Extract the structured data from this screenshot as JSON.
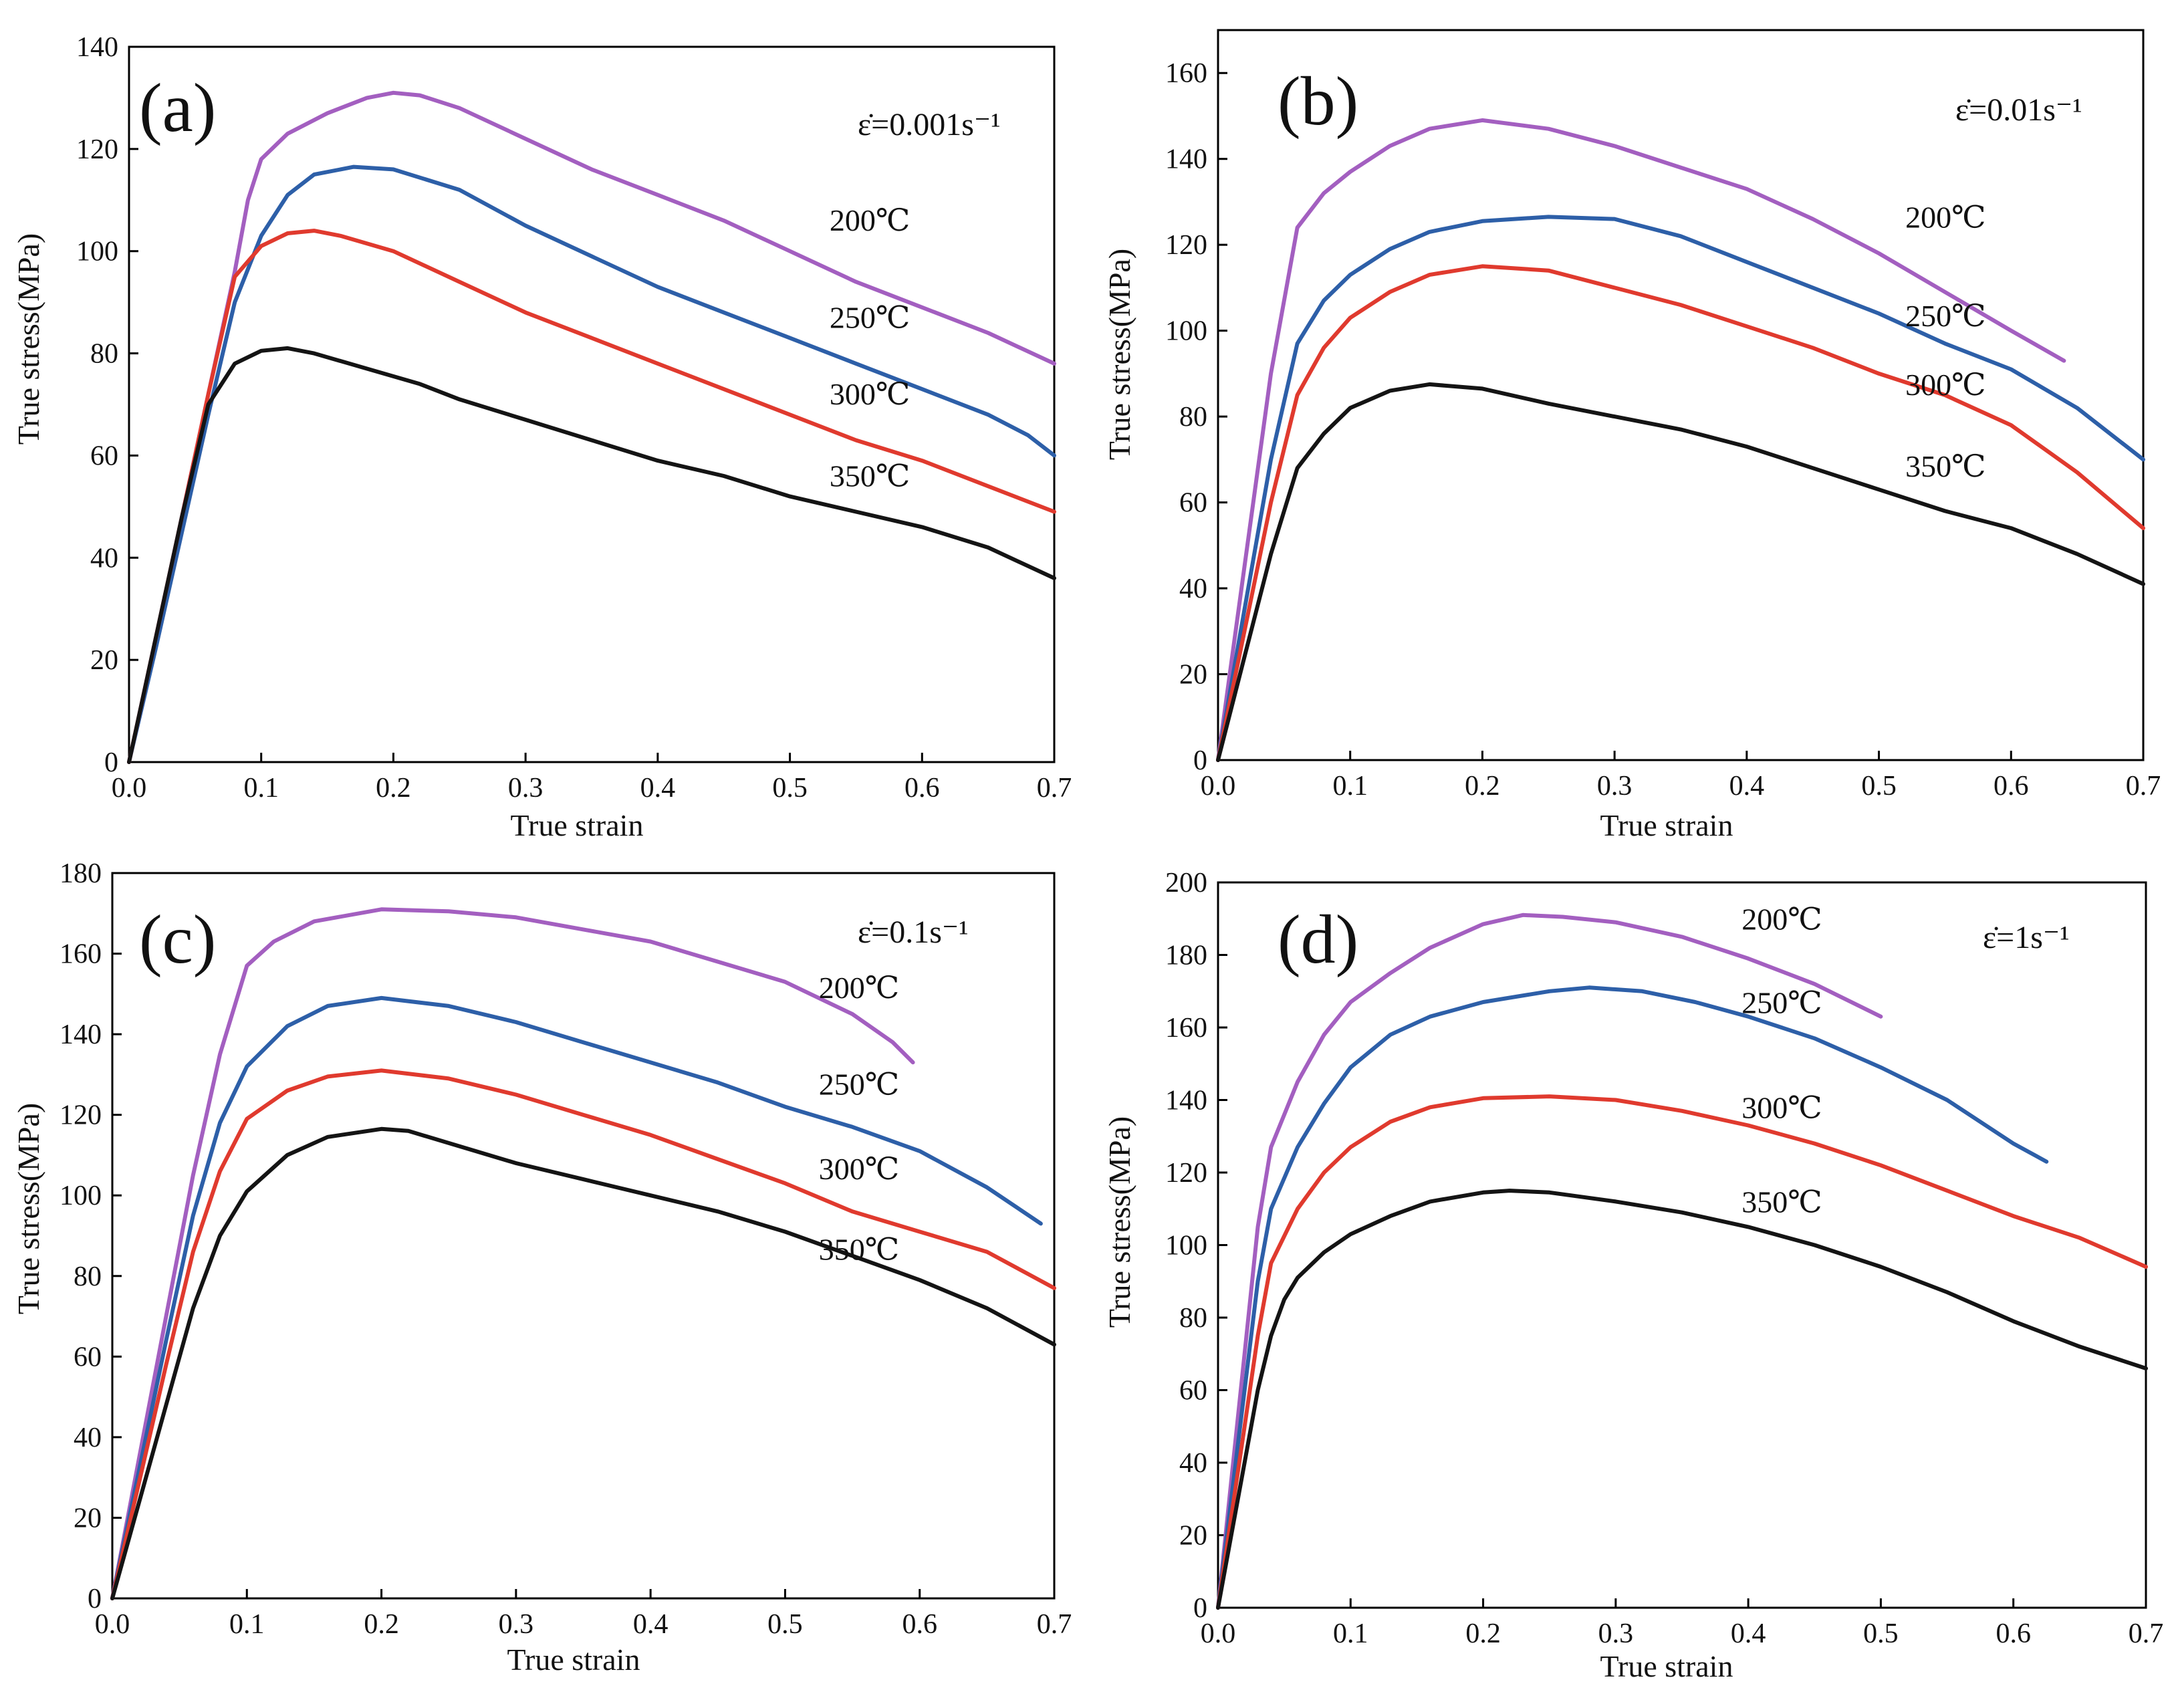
{
  "chart_data": [
    {
      "type": "line",
      "panel_label": "(a)",
      "strain_rate_label": "ε̇=0.001s⁻¹",
      "xlabel": "True strain",
      "ylabel": "True stress(MPa)",
      "xlim": [
        0,
        0.7
      ],
      "ylim": [
        0,
        140
      ],
      "xticks": [
        0.0,
        0.1,
        0.2,
        0.3,
        0.4,
        0.5,
        0.6,
        0.7
      ],
      "xtick_labels": [
        "0.0",
        "0.1",
        "0.2",
        "0.3",
        "0.4",
        "0.5",
        "0.6",
        "0.7"
      ],
      "yticks": [
        0,
        20,
        40,
        60,
        80,
        100,
        120,
        140
      ],
      "ytick_labels": [
        "0",
        "20",
        "40",
        "60",
        "80",
        "100",
        "120",
        "140"
      ],
      "series": [
        {
          "name": "200℃",
          "color": "#a35fc0",
          "label_at": [
            0.53,
            104
          ],
          "x": [
            0,
            0.02,
            0.04,
            0.06,
            0.08,
            0.09,
            0.1,
            0.12,
            0.15,
            0.18,
            0.2,
            0.22,
            0.25,
            0.3,
            0.35,
            0.4,
            0.45,
            0.5,
            0.55,
            0.6,
            0.65,
            0.7
          ],
          "y": [
            0,
            24,
            48,
            72,
            96,
            110,
            118,
            123,
            127,
            130,
            131,
            130.5,
            128,
            122,
            116,
            111,
            106,
            100,
            94,
            89,
            84,
            78
          ]
        },
        {
          "name": "250℃",
          "color": "#2d5fa8",
          "label_at": [
            0.53,
            85
          ],
          "x": [
            0,
            0.02,
            0.04,
            0.06,
            0.08,
            0.1,
            0.12,
            0.14,
            0.17,
            0.2,
            0.25,
            0.3,
            0.35,
            0.4,
            0.45,
            0.5,
            0.55,
            0.6,
            0.65,
            0.68,
            0.7
          ],
          "y": [
            0,
            22,
            45,
            68,
            90,
            103,
            111,
            115,
            116.5,
            116,
            112,
            105,
            99,
            93,
            88,
            83,
            78,
            73,
            68,
            64,
            60
          ]
        },
        {
          "name": "300℃",
          "color": "#e03a2e",
          "label_at": [
            0.53,
            70
          ],
          "x": [
            0,
            0.02,
            0.04,
            0.06,
            0.08,
            0.1,
            0.12,
            0.14,
            0.16,
            0.2,
            0.25,
            0.3,
            0.35,
            0.4,
            0.45,
            0.5,
            0.55,
            0.6,
            0.65,
            0.7
          ],
          "y": [
            0,
            24,
            48,
            72,
            95,
            101,
            103.5,
            104,
            103,
            100,
            94,
            88,
            83,
            78,
            73,
            68,
            63,
            59,
            54,
            49
          ]
        },
        {
          "name": "350℃",
          "color": "#141414",
          "label_at": [
            0.53,
            54
          ],
          "x": [
            0,
            0.02,
            0.04,
            0.06,
            0.08,
            0.1,
            0.12,
            0.14,
            0.18,
            0.22,
            0.25,
            0.3,
            0.35,
            0.4,
            0.45,
            0.5,
            0.55,
            0.6,
            0.65,
            0.7
          ],
          "y": [
            0,
            24,
            48,
            70,
            78,
            80.5,
            81,
            80,
            77,
            74,
            71,
            67,
            63,
            59,
            56,
            52,
            49,
            46,
            42,
            36
          ]
        }
      ]
    },
    {
      "type": "line",
      "panel_label": "(b)",
      "strain_rate_label": "ε̇=0.01s⁻¹",
      "xlabel": "True strain",
      "ylabel": "True stress(MPa)",
      "xlim": [
        0,
        0.7
      ],
      "ylim": [
        0,
        170
      ],
      "xticks": [
        0.0,
        0.1,
        0.2,
        0.3,
        0.4,
        0.5,
        0.6,
        0.7
      ],
      "xtick_labels": [
        "0.0",
        "0.1",
        "0.2",
        "0.3",
        "0.4",
        "0.5",
        "0.6",
        "0.7"
      ],
      "yticks": [
        0,
        20,
        40,
        60,
        80,
        100,
        120,
        140,
        160
      ],
      "ytick_labels": [
        "0",
        "20",
        "40",
        "60",
        "80",
        "100",
        "120",
        "140",
        "160"
      ],
      "series": [
        {
          "name": "200℃",
          "color": "#a35fc0",
          "label_at": [
            0.52,
            124
          ],
          "x": [
            0,
            0.02,
            0.04,
            0.06,
            0.08,
            0.1,
            0.13,
            0.16,
            0.2,
            0.25,
            0.3,
            0.35,
            0.4,
            0.45,
            0.5,
            0.55,
            0.6,
            0.64
          ],
          "y": [
            0,
            45,
            90,
            124,
            132,
            137,
            143,
            147,
            149,
            147,
            143,
            138,
            133,
            126,
            118,
            109,
            100,
            93
          ]
        },
        {
          "name": "250℃",
          "color": "#2d5fa8",
          "label_at": [
            0.52,
            101
          ],
          "x": [
            0,
            0.02,
            0.04,
            0.06,
            0.08,
            0.1,
            0.13,
            0.16,
            0.2,
            0.25,
            0.3,
            0.35,
            0.4,
            0.45,
            0.5,
            0.55,
            0.6,
            0.65,
            0.7
          ],
          "y": [
            0,
            35,
            70,
            97,
            107,
            113,
            119,
            123,
            125.5,
            126.5,
            126,
            122,
            116,
            110,
            104,
            97,
            91,
            82,
            70
          ]
        },
        {
          "name": "300℃",
          "color": "#e03a2e",
          "label_at": [
            0.52,
            85
          ],
          "x": [
            0,
            0.02,
            0.04,
            0.06,
            0.08,
            0.1,
            0.13,
            0.16,
            0.2,
            0.25,
            0.3,
            0.35,
            0.4,
            0.45,
            0.5,
            0.55,
            0.6,
            0.65,
            0.7
          ],
          "y": [
            0,
            30,
            60,
            85,
            96,
            103,
            109,
            113,
            115,
            114,
            110,
            106,
            101,
            96,
            90,
            85,
            78,
            67,
            54
          ]
        },
        {
          "name": "350℃",
          "color": "#141414",
          "label_at": [
            0.52,
            66
          ],
          "x": [
            0,
            0.02,
            0.04,
            0.06,
            0.08,
            0.1,
            0.13,
            0.16,
            0.2,
            0.25,
            0.3,
            0.35,
            0.4,
            0.45,
            0.5,
            0.55,
            0.6,
            0.65,
            0.7
          ],
          "y": [
            0,
            24,
            48,
            68,
            76,
            82,
            86,
            87.5,
            86.5,
            83,
            80,
            77,
            73,
            68,
            63,
            58,
            54,
            48,
            41
          ]
        }
      ]
    },
    {
      "type": "line",
      "panel_label": "(c)",
      "strain_rate_label": "ε̇=0.1s⁻¹",
      "xlabel": "True strain",
      "ylabel": "True stress(MPa)",
      "xlim": [
        0,
        0.7
      ],
      "ylim": [
        0,
        180
      ],
      "xticks": [
        0.0,
        0.1,
        0.2,
        0.3,
        0.4,
        0.5,
        0.6,
        0.7
      ],
      "xtick_labels": [
        "0.0",
        "0.1",
        "0.2",
        "0.3",
        "0.4",
        "0.5",
        "0.6",
        "0.7"
      ],
      "yticks": [
        0,
        20,
        40,
        60,
        80,
        100,
        120,
        140,
        160,
        180
      ],
      "ytick_labels": [
        "0",
        "20",
        "40",
        "60",
        "80",
        "100",
        "120",
        "140",
        "160",
        "180"
      ],
      "series": [
        {
          "name": "200℃",
          "color": "#a35fc0",
          "label_at": [
            0.525,
            149
          ],
          "x": [
            0,
            0.02,
            0.04,
            0.06,
            0.08,
            0.1,
            0.12,
            0.15,
            0.2,
            0.25,
            0.3,
            0.35,
            0.4,
            0.45,
            0.5,
            0.55,
            0.58,
            0.595
          ],
          "y": [
            0,
            35,
            70,
            105,
            135,
            157,
            163,
            168,
            171,
            170.5,
            169,
            166,
            163,
            158,
            153,
            145,
            138,
            133
          ]
        },
        {
          "name": "250℃",
          "color": "#2d5fa8",
          "label_at": [
            0.525,
            125
          ],
          "x": [
            0,
            0.02,
            0.04,
            0.06,
            0.08,
            0.1,
            0.13,
            0.16,
            0.2,
            0.25,
            0.3,
            0.35,
            0.4,
            0.45,
            0.5,
            0.55,
            0.6,
            0.65,
            0.69
          ],
          "y": [
            0,
            32,
            64,
            95,
            118,
            132,
            142,
            147,
            149,
            147,
            143,
            138,
            133,
            128,
            122,
            117,
            111,
            102,
            93
          ]
        },
        {
          "name": "300℃",
          "color": "#e03a2e",
          "label_at": [
            0.525,
            104
          ],
          "x": [
            0,
            0.02,
            0.04,
            0.06,
            0.08,
            0.1,
            0.13,
            0.16,
            0.2,
            0.25,
            0.3,
            0.35,
            0.4,
            0.45,
            0.5,
            0.55,
            0.6,
            0.65,
            0.7
          ],
          "y": [
            0,
            29,
            58,
            86,
            106,
            119,
            126,
            129.5,
            131,
            129,
            125,
            120,
            115,
            109,
            103,
            96,
            91,
            86,
            77
          ]
        },
        {
          "name": "350℃",
          "color": "#141414",
          "label_at": [
            0.525,
            84
          ],
          "x": [
            0,
            0.02,
            0.04,
            0.06,
            0.08,
            0.1,
            0.13,
            0.16,
            0.2,
            0.22,
            0.25,
            0.3,
            0.35,
            0.4,
            0.45,
            0.5,
            0.55,
            0.6,
            0.65,
            0.7
          ],
          "y": [
            0,
            24,
            48,
            72,
            90,
            101,
            110,
            114.5,
            116.5,
            116,
            113,
            108,
            104,
            100,
            96,
            91,
            85,
            79,
            72,
            63
          ]
        }
      ]
    },
    {
      "type": "line",
      "panel_label": "(d)",
      "strain_rate_label": "ε̇=1s⁻¹",
      "xlabel": "True strain",
      "ylabel": "True stress(MPa)",
      "xlim": [
        0,
        0.7
      ],
      "ylim": [
        0,
        200
      ],
      "xticks": [
        0.0,
        0.1,
        0.2,
        0.3,
        0.4,
        0.5,
        0.6,
        0.7
      ],
      "xtick_labels": [
        "0.0",
        "0.1",
        "0.2",
        "0.3",
        "0.4",
        "0.5",
        "0.6",
        "0.7"
      ],
      "yticks": [
        0,
        20,
        40,
        60,
        80,
        100,
        120,
        140,
        160,
        180,
        200
      ],
      "ytick_labels": [
        "0",
        "20",
        "40",
        "60",
        "80",
        "100",
        "120",
        "140",
        "160",
        "180",
        "200"
      ],
      "series": [
        {
          "name": "200℃",
          "color": "#a35fc0",
          "label_at": [
            0.395,
            187
          ],
          "x": [
            0,
            0.01,
            0.02,
            0.03,
            0.04,
            0.06,
            0.08,
            0.1,
            0.13,
            0.16,
            0.2,
            0.23,
            0.26,
            0.3,
            0.35,
            0.4,
            0.45,
            0.5
          ],
          "y": [
            0,
            35,
            70,
            105,
            127,
            145,
            158,
            167,
            175,
            182,
            188.5,
            191,
            190.5,
            189,
            185,
            179,
            172,
            163
          ]
        },
        {
          "name": "250℃",
          "color": "#2d5fa8",
          "label_at": [
            0.395,
            164
          ],
          "x": [
            0,
            0.01,
            0.02,
            0.03,
            0.04,
            0.06,
            0.08,
            0.1,
            0.13,
            0.16,
            0.2,
            0.25,
            0.28,
            0.32,
            0.36,
            0.4,
            0.45,
            0.5,
            0.55,
            0.6,
            0.625
          ],
          "y": [
            0,
            30,
            60,
            90,
            110,
            127,
            139,
            149,
            158,
            163,
            167,
            170,
            171,
            170,
            167,
            163,
            157,
            149,
            140,
            128,
            123
          ]
        },
        {
          "name": "300℃",
          "color": "#e03a2e",
          "label_at": [
            0.395,
            135
          ],
          "x": [
            0,
            0.01,
            0.02,
            0.03,
            0.04,
            0.06,
            0.08,
            0.1,
            0.13,
            0.16,
            0.2,
            0.25,
            0.3,
            0.35,
            0.4,
            0.45,
            0.5,
            0.55,
            0.6,
            0.65,
            0.7
          ],
          "y": [
            0,
            25,
            50,
            75,
            95,
            110,
            120,
            127,
            134,
            138,
            140.5,
            141,
            140,
            137,
            133,
            128,
            122,
            115,
            108,
            102,
            94
          ]
        },
        {
          "name": "350℃",
          "color": "#141414",
          "label_at": [
            0.395,
            109
          ],
          "x": [
            0,
            0.01,
            0.02,
            0.03,
            0.04,
            0.05,
            0.06,
            0.08,
            0.1,
            0.13,
            0.16,
            0.2,
            0.22,
            0.25,
            0.3,
            0.35,
            0.4,
            0.45,
            0.5,
            0.55,
            0.6,
            0.65,
            0.7
          ],
          "y": [
            0,
            20,
            40,
            60,
            75,
            85,
            91,
            98,
            103,
            108,
            112,
            114.5,
            115,
            114.5,
            112,
            109,
            105,
            100,
            94,
            87,
            79,
            72,
            66
          ]
        }
      ]
    }
  ]
}
